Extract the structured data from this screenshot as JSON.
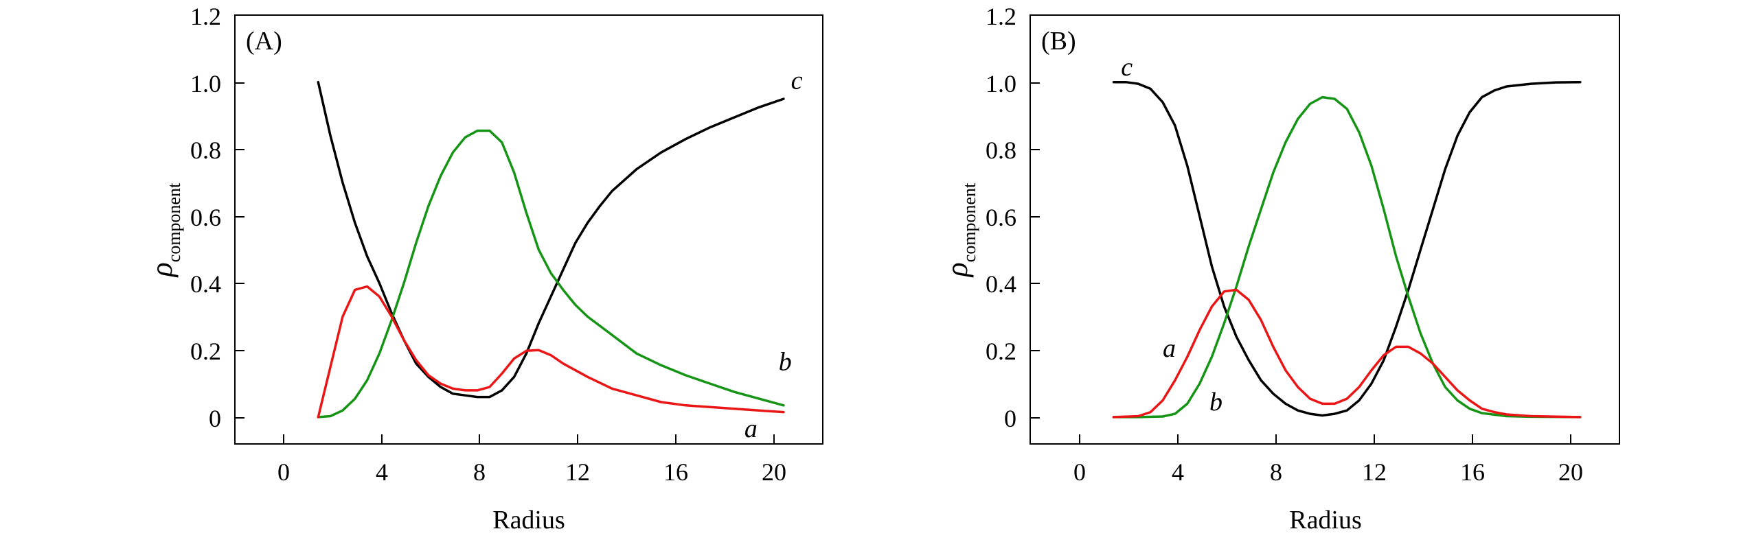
{
  "chart_data": [
    {
      "type": "line",
      "panel": "(A)",
      "xlabel": "Radius",
      "ylabel": "ρ",
      "ylabel_sub": "component",
      "xlim": [
        -2.4,
        21.6
      ],
      "ylim": [
        -0.08,
        1.2
      ],
      "xticks": [
        0,
        4,
        8,
        12,
        16,
        20
      ],
      "xtick_labels": [
        "0",
        "4",
        "8",
        "12",
        "16",
        "20"
      ],
      "yticks": [
        0,
        0.2,
        0.4,
        0.6,
        0.8,
        1.0,
        1.2
      ],
      "ytick_labels": [
        "0",
        "0.2",
        "0.4",
        "0.6",
        "0.8",
        "1.0",
        "1.2"
      ],
      "series": [
        {
          "name": "c",
          "color": "#000000",
          "label_at": [
            20.3,
            0.98
          ],
          "points": [
            [
              1.0,
              1.0
            ],
            [
              1.5,
              0.84
            ],
            [
              2.0,
              0.7
            ],
            [
              2.5,
              0.58
            ],
            [
              3.0,
              0.48
            ],
            [
              3.5,
              0.4
            ],
            [
              4.0,
              0.31
            ],
            [
              4.5,
              0.23
            ],
            [
              5.0,
              0.16
            ],
            [
              5.5,
              0.12
            ],
            [
              6.0,
              0.09
            ],
            [
              6.5,
              0.07
            ],
            [
              7.0,
              0.065
            ],
            [
              7.5,
              0.06
            ],
            [
              8.0,
              0.06
            ],
            [
              8.5,
              0.08
            ],
            [
              9.0,
              0.12
            ],
            [
              9.5,
              0.19
            ],
            [
              10.0,
              0.28
            ],
            [
              10.5,
              0.36
            ],
            [
              11.0,
              0.44
            ],
            [
              11.5,
              0.52
            ],
            [
              12.0,
              0.58
            ],
            [
              12.5,
              0.63
            ],
            [
              13.0,
              0.675
            ],
            [
              14.0,
              0.74
            ],
            [
              15.0,
              0.79
            ],
            [
              16.0,
              0.83
            ],
            [
              17.0,
              0.865
            ],
            [
              18.0,
              0.895
            ],
            [
              19.0,
              0.925
            ],
            [
              20.0,
              0.95
            ]
          ]
        },
        {
          "name": "b",
          "color": "#159415",
          "label_at": [
            19.8,
            0.14
          ],
          "points": [
            [
              1.0,
              0.0
            ],
            [
              1.5,
              0.003
            ],
            [
              2.0,
              0.02
            ],
            [
              2.5,
              0.055
            ],
            [
              3.0,
              0.11
            ],
            [
              3.5,
              0.19
            ],
            [
              4.0,
              0.29
            ],
            [
              4.5,
              0.4
            ],
            [
              5.0,
              0.52
            ],
            [
              5.5,
              0.63
            ],
            [
              6.0,
              0.72
            ],
            [
              6.5,
              0.79
            ],
            [
              7.0,
              0.835
            ],
            [
              7.5,
              0.855
            ],
            [
              8.0,
              0.855
            ],
            [
              8.5,
              0.82
            ],
            [
              9.0,
              0.73
            ],
            [
              9.5,
              0.61
            ],
            [
              10.0,
              0.5
            ],
            [
              10.5,
              0.43
            ],
            [
              11.0,
              0.38
            ],
            [
              11.5,
              0.335
            ],
            [
              12.0,
              0.3
            ],
            [
              13.0,
              0.245
            ],
            [
              14.0,
              0.19
            ],
            [
              15.0,
              0.155
            ],
            [
              16.0,
              0.125
            ],
            [
              17.0,
              0.1
            ],
            [
              18.0,
              0.075
            ],
            [
              19.0,
              0.055
            ],
            [
              20.0,
              0.035
            ]
          ]
        },
        {
          "name": "a",
          "color": "#ea1616",
          "label_at": [
            18.4,
            -0.06
          ],
          "points": [
            [
              1.0,
              0.0
            ],
            [
              1.5,
              0.15
            ],
            [
              2.0,
              0.3
            ],
            [
              2.5,
              0.38
            ],
            [
              3.0,
              0.39
            ],
            [
              3.5,
              0.36
            ],
            [
              4.0,
              0.3
            ],
            [
              4.5,
              0.23
            ],
            [
              5.0,
              0.17
            ],
            [
              5.5,
              0.125
            ],
            [
              6.0,
              0.1
            ],
            [
              6.5,
              0.085
            ],
            [
              7.0,
              0.08
            ],
            [
              7.5,
              0.08
            ],
            [
              8.0,
              0.09
            ],
            [
              8.5,
              0.13
            ],
            [
              9.0,
              0.175
            ],
            [
              9.5,
              0.198
            ],
            [
              10.0,
              0.2
            ],
            [
              10.5,
              0.185
            ],
            [
              11.0,
              0.16
            ],
            [
              12.0,
              0.12
            ],
            [
              13.0,
              0.085
            ],
            [
              14.0,
              0.065
            ],
            [
              15.0,
              0.045
            ],
            [
              16.0,
              0.035
            ],
            [
              17.0,
              0.03
            ],
            [
              18.0,
              0.025
            ],
            [
              19.0,
              0.02
            ],
            [
              20.0,
              0.015
            ]
          ]
        }
      ]
    },
    {
      "type": "line",
      "panel": "(B)",
      "xlabel": "Radius",
      "ylabel": "ρ",
      "ylabel_sub": "component",
      "xlim": [
        -2.4,
        21.6
      ],
      "ylim": [
        -0.08,
        1.2
      ],
      "xticks": [
        0,
        4,
        8,
        12,
        16,
        20
      ],
      "xtick_labels": [
        "0",
        "4",
        "8",
        "12",
        "16",
        "20"
      ],
      "yticks": [
        0,
        0.2,
        0.4,
        0.6,
        0.8,
        1.0,
        1.2
      ],
      "ytick_labels": [
        "0",
        "0.2",
        "0.4",
        "0.6",
        "0.8",
        "1.0",
        "1.2"
      ],
      "series": [
        {
          "name": "c",
          "color": "#000000",
          "label_at": [
            1.3,
            1.02
          ],
          "points": [
            [
              1.0,
              1.0
            ],
            [
              1.5,
              1.0
            ],
            [
              2.0,
              0.995
            ],
            [
              2.5,
              0.98
            ],
            [
              3.0,
              0.94
            ],
            [
              3.5,
              0.87
            ],
            [
              4.0,
              0.75
            ],
            [
              4.5,
              0.6
            ],
            [
              5.0,
              0.45
            ],
            [
              5.5,
              0.33
            ],
            [
              6.0,
              0.24
            ],
            [
              6.5,
              0.17
            ],
            [
              7.0,
              0.11
            ],
            [
              7.5,
              0.07
            ],
            [
              8.0,
              0.04
            ],
            [
              8.5,
              0.02
            ],
            [
              9.0,
              0.01
            ],
            [
              9.5,
              0.005
            ],
            [
              10.0,
              0.01
            ],
            [
              10.5,
              0.02
            ],
            [
              11.0,
              0.05
            ],
            [
              11.5,
              0.1
            ],
            [
              12.0,
              0.17
            ],
            [
              12.5,
              0.27
            ],
            [
              13.0,
              0.38
            ],
            [
              13.5,
              0.5
            ],
            [
              14.0,
              0.62
            ],
            [
              14.5,
              0.74
            ],
            [
              15.0,
              0.84
            ],
            [
              15.5,
              0.91
            ],
            [
              16.0,
              0.955
            ],
            [
              16.5,
              0.975
            ],
            [
              17.0,
              0.987
            ],
            [
              18.0,
              0.995
            ],
            [
              19.0,
              0.999
            ],
            [
              20.0,
              1.0
            ]
          ]
        },
        {
          "name": "b",
          "color": "#159415",
          "label_at": [
            4.9,
            0.02
          ],
          "points": [
            [
              1.0,
              0.0
            ],
            [
              2.0,
              0.0
            ],
            [
              3.0,
              0.002
            ],
            [
              3.5,
              0.01
            ],
            [
              4.0,
              0.04
            ],
            [
              4.5,
              0.1
            ],
            [
              5.0,
              0.18
            ],
            [
              5.5,
              0.28
            ],
            [
              6.0,
              0.39
            ],
            [
              6.5,
              0.51
            ],
            [
              7.0,
              0.62
            ],
            [
              7.5,
              0.73
            ],
            [
              8.0,
              0.82
            ],
            [
              8.5,
              0.89
            ],
            [
              9.0,
              0.935
            ],
            [
              9.5,
              0.955
            ],
            [
              10.0,
              0.95
            ],
            [
              10.5,
              0.92
            ],
            [
              11.0,
              0.85
            ],
            [
              11.5,
              0.75
            ],
            [
              12.0,
              0.62
            ],
            [
              12.5,
              0.48
            ],
            [
              13.0,
              0.36
            ],
            [
              13.5,
              0.25
            ],
            [
              14.0,
              0.16
            ],
            [
              14.5,
              0.09
            ],
            [
              15.0,
              0.05
            ],
            [
              15.5,
              0.025
            ],
            [
              16.0,
              0.012
            ],
            [
              17.0,
              0.003
            ],
            [
              18.0,
              0.001
            ],
            [
              20.0,
              0.0
            ]
          ]
        },
        {
          "name": "a",
          "color": "#ea1616",
          "label_at": [
            3.0,
            0.18
          ],
          "points": [
            [
              1.0,
              0.0
            ],
            [
              2.0,
              0.003
            ],
            [
              2.5,
              0.015
            ],
            [
              3.0,
              0.05
            ],
            [
              3.5,
              0.11
            ],
            [
              4.0,
              0.18
            ],
            [
              4.5,
              0.26
            ],
            [
              5.0,
              0.33
            ],
            [
              5.5,
              0.375
            ],
            [
              6.0,
              0.38
            ],
            [
              6.5,
              0.35
            ],
            [
              7.0,
              0.29
            ],
            [
              7.5,
              0.21
            ],
            [
              8.0,
              0.14
            ],
            [
              8.5,
              0.09
            ],
            [
              9.0,
              0.055
            ],
            [
              9.5,
              0.04
            ],
            [
              10.0,
              0.04
            ],
            [
              10.5,
              0.055
            ],
            [
              11.0,
              0.09
            ],
            [
              11.5,
              0.14
            ],
            [
              12.0,
              0.185
            ],
            [
              12.5,
              0.21
            ],
            [
              13.0,
              0.21
            ],
            [
              13.5,
              0.19
            ],
            [
              14.0,
              0.16
            ],
            [
              14.5,
              0.12
            ],
            [
              15.0,
              0.08
            ],
            [
              15.5,
              0.05
            ],
            [
              16.0,
              0.025
            ],
            [
              16.5,
              0.015
            ],
            [
              17.0,
              0.008
            ],
            [
              18.0,
              0.003
            ],
            [
              20.0,
              0.0
            ]
          ]
        }
      ]
    }
  ]
}
